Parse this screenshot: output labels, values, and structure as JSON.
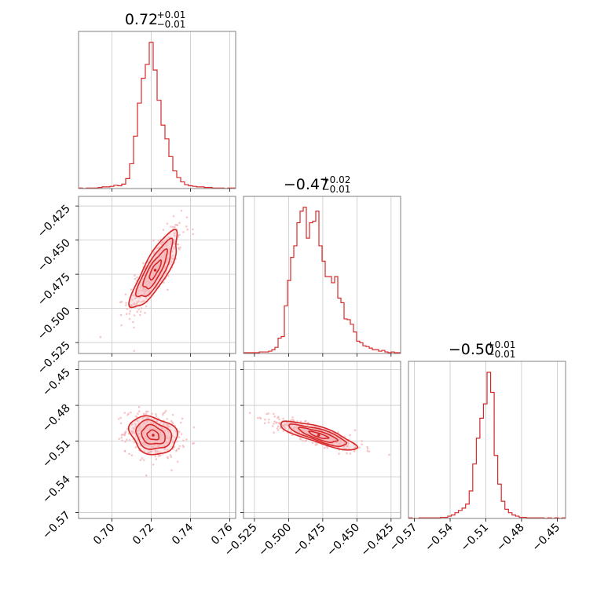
{
  "colors": {
    "accent": "#d62728",
    "fill": "#f4b8bc",
    "points": "#f2b0b4",
    "grid": "#c8c8c8",
    "frame": "#808080"
  },
  "chart_data": {
    "type": "corner",
    "parameters": [
      {
        "range": [
          0.683,
          0.763
        ],
        "ticks": [
          "0.70",
          "0.72",
          "0.74",
          "0.76"
        ],
        "tick_values": [
          0.7,
          0.72,
          0.74,
          0.76
        ],
        "title": {
          "median": "0.72",
          "upper": "+0.01",
          "lower": "−0.01"
        }
      },
      {
        "range": [
          -0.533,
          -0.418
        ],
        "ticks": [
          "−0.525",
          "−0.500",
          "−0.475",
          "−0.450",
          "−0.425"
        ],
        "tick_values": [
          -0.525,
          -0.5,
          -0.475,
          -0.45,
          -0.425
        ],
        "title": {
          "median": "−0.47",
          "upper": "+0.02",
          "lower": "−0.01"
        }
      },
      {
        "range": [
          -0.575,
          -0.443
        ],
        "ticks": [
          "−0.57",
          "−0.54",
          "−0.51",
          "−0.48",
          "−0.45"
        ],
        "tick_values": [
          -0.57,
          -0.54,
          -0.51,
          -0.48,
          -0.45
        ],
        "title": {
          "median": "−0.50",
          "upper": "+0.01",
          "lower": "−0.01"
        }
      }
    ],
    "marginals": [
      {
        "param": 0,
        "edges": [
          0.683,
          0.685,
          0.687,
          0.689,
          0.691,
          0.693,
          0.695,
          0.697,
          0.699,
          0.701,
          0.703,
          0.705,
          0.707,
          0.709,
          0.711,
          0.713,
          0.715,
          0.717,
          0.719,
          0.721,
          0.723,
          0.725,
          0.727,
          0.729,
          0.731,
          0.733,
          0.735,
          0.737,
          0.739,
          0.741,
          0.743,
          0.745,
          0.747,
          0.749,
          0.751,
          0.753,
          0.755,
          0.757,
          0.759,
          0.761,
          0.763
        ],
        "counts": [
          1,
          0,
          1,
          1,
          1,
          2,
          3,
          3,
          4,
          6,
          5,
          8,
          18,
          45,
          95,
          155,
          200,
          225,
          265,
          215,
          160,
          115,
          90,
          58,
          32,
          20,
          12,
          7,
          5,
          4,
          3,
          3,
          2,
          2,
          1,
          1,
          1,
          0,
          1,
          1
        ]
      },
      {
        "param": 1,
        "edges": [
          -0.533,
          -0.5307,
          -0.5284,
          -0.5261,
          -0.5238,
          -0.5215,
          -0.5192,
          -0.5169,
          -0.5146,
          -0.5123,
          -0.51,
          -0.5077,
          -0.5054,
          -0.5031,
          -0.5008,
          -0.4985,
          -0.4962,
          -0.4939,
          -0.4916,
          -0.4893,
          -0.487,
          -0.4847,
          -0.4824,
          -0.4801,
          -0.4778,
          -0.4755,
          -0.4732,
          -0.4709,
          -0.4686,
          -0.4663,
          -0.464,
          -0.4617,
          -0.4594,
          -0.4571,
          -0.4548,
          -0.4525,
          -0.4502,
          -0.4479,
          -0.4456,
          -0.4433,
          -0.441,
          -0.4387,
          -0.4364,
          -0.4341,
          -0.4318,
          -0.4295,
          -0.4272,
          -0.4249,
          -0.4226,
          -0.4203,
          -0.418
        ],
        "counts": [
          1,
          1,
          1,
          1,
          1,
          2,
          2,
          2,
          3,
          5,
          8,
          20,
          22,
          62,
          95,
          125,
          140,
          170,
          185,
          190,
          150,
          170,
          172,
          185,
          140,
          120,
          100,
          100,
          92,
          100,
          72,
          66,
          45,
          44,
          38,
          28,
          16,
          14,
          10,
          9,
          7,
          5,
          5,
          3,
          4,
          2,
          1,
          2,
          1,
          1
        ]
      },
      {
        "param": 2,
        "edges": [
          -0.575,
          -0.572,
          -0.569,
          -0.566,
          -0.563,
          -0.56,
          -0.557,
          -0.554,
          -0.551,
          -0.548,
          -0.545,
          -0.542,
          -0.539,
          -0.536,
          -0.533,
          -0.53,
          -0.527,
          -0.524,
          -0.521,
          -0.518,
          -0.515,
          -0.512,
          -0.509,
          -0.506,
          -0.503,
          -0.5,
          -0.497,
          -0.494,
          -0.491,
          -0.488,
          -0.485,
          -0.482,
          -0.479,
          -0.476,
          -0.473,
          -0.47,
          -0.467,
          -0.464,
          -0.461,
          -0.458,
          -0.455,
          -0.452,
          -0.449,
          -0.446,
          -0.443
        ],
        "counts": [
          1,
          0,
          0,
          1,
          1,
          1,
          1,
          1,
          1,
          2,
          2,
          4,
          6,
          10,
          14,
          18,
          25,
          48,
          95,
          140,
          175,
          200,
          255,
          220,
          110,
          60,
          30,
          16,
          10,
          6,
          4,
          2,
          2,
          1,
          1,
          1,
          1,
          1,
          0,
          1,
          0,
          1,
          0,
          1
        ]
      }
    ],
    "pairs": [
      {
        "x_param": 0,
        "y_param": 1,
        "center": [
          0.722,
          -0.472
        ],
        "sigma": [
          0.006,
          0.014
        ],
        "rho": 0.82
      },
      {
        "x_param": 0,
        "y_param": 2,
        "center": [
          0.721,
          -0.505
        ],
        "sigma": [
          0.006,
          0.008
        ],
        "rho": -0.2
      },
      {
        "x_param": 1,
        "y_param": 2,
        "center": [
          -0.478,
          -0.505
        ],
        "sigma": [
          0.014,
          0.006
        ],
        "rho": -0.82
      }
    ],
    "contour_levels_sigma": [
      0.5,
      1.0,
      1.5,
      2.0
    ],
    "grid": true
  }
}
